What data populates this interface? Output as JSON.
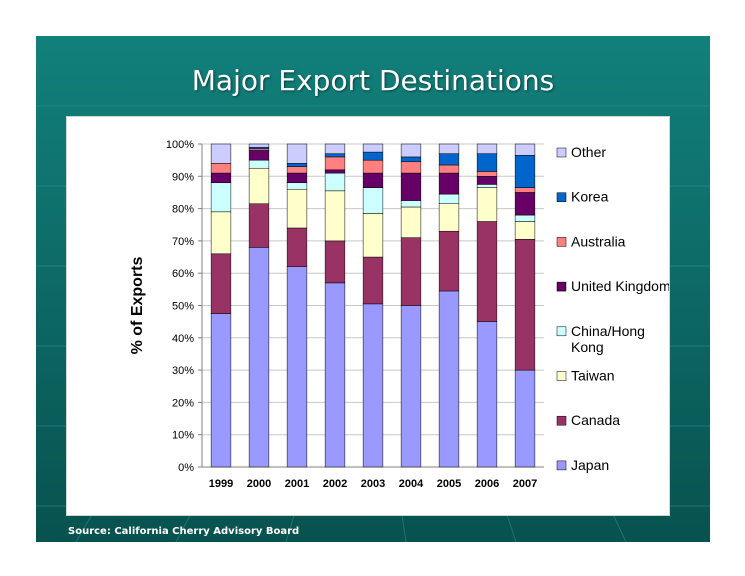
{
  "slide": {
    "title": "Major Export Destinations",
    "source": "Source: California Cherry Advisory Board"
  },
  "colors": {
    "slide_bg": "#0e7a76",
    "Japan": "#9999ff",
    "Canada": "#993366",
    "Taiwan": "#ffffcc",
    "China/Hong Kong": "#ccffff",
    "United Kingdom": "#660066",
    "Australia": "#ff8080",
    "Korea": "#0066cc",
    "Other": "#ccccff"
  },
  "chart_data": {
    "type": "bar",
    "stacked": true,
    "title": "",
    "xlabel": "",
    "ylabel": "% of  Exports",
    "ylim": [
      0,
      100
    ],
    "yticks": [
      "0%",
      "10%",
      "20%",
      "30%",
      "40%",
      "50%",
      "60%",
      "70%",
      "80%",
      "90%",
      "100%"
    ],
    "grid": true,
    "legend_position": "right",
    "categories": [
      "1999",
      "2000",
      "2001",
      "2002",
      "2003",
      "2004",
      "2005",
      "2006",
      "2007"
    ],
    "series": [
      {
        "name": "Japan",
        "legend_lines": [
          "Japan"
        ],
        "values": [
          47.5,
          68,
          62,
          57,
          50.5,
          50,
          54.5,
          45,
          30
        ]
      },
      {
        "name": "Canada",
        "legend_lines": [
          "Canada"
        ],
        "values": [
          18.5,
          13.5,
          12,
          13,
          14.5,
          21,
          18.5,
          31,
          40.5
        ]
      },
      {
        "name": "Taiwan",
        "legend_lines": [
          "Taiwan"
        ],
        "values": [
          13,
          11,
          12,
          15.5,
          13.5,
          9.5,
          8.5,
          10.5,
          5.5
        ]
      },
      {
        "name": "China/Hong Kong",
        "legend_lines": [
          "China/Hong",
          "Kong"
        ],
        "values": [
          9,
          2.5,
          2,
          5.5,
          8,
          2,
          3,
          1,
          2
        ]
      },
      {
        "name": "United Kingdom",
        "legend_lines": [
          "United Kingdom"
        ],
        "values": [
          3,
          3,
          3,
          1,
          4.5,
          8.5,
          6.5,
          2.5,
          7
        ]
      },
      {
        "name": "Australia",
        "legend_lines": [
          "Australia"
        ],
        "values": [
          3,
          0.5,
          2,
          4,
          4,
          3.5,
          2.5,
          1.5,
          1.5
        ]
      },
      {
        "name": "Korea",
        "legend_lines": [
          "Korea"
        ],
        "values": [
          0,
          0.5,
          1,
          1,
          2.5,
          1.5,
          3.5,
          5.5,
          10
        ]
      },
      {
        "name": "Other",
        "legend_lines": [
          "Other"
        ],
        "values": [
          6,
          1,
          6,
          3,
          2.5,
          4,
          3,
          3,
          3.5
        ]
      }
    ]
  }
}
